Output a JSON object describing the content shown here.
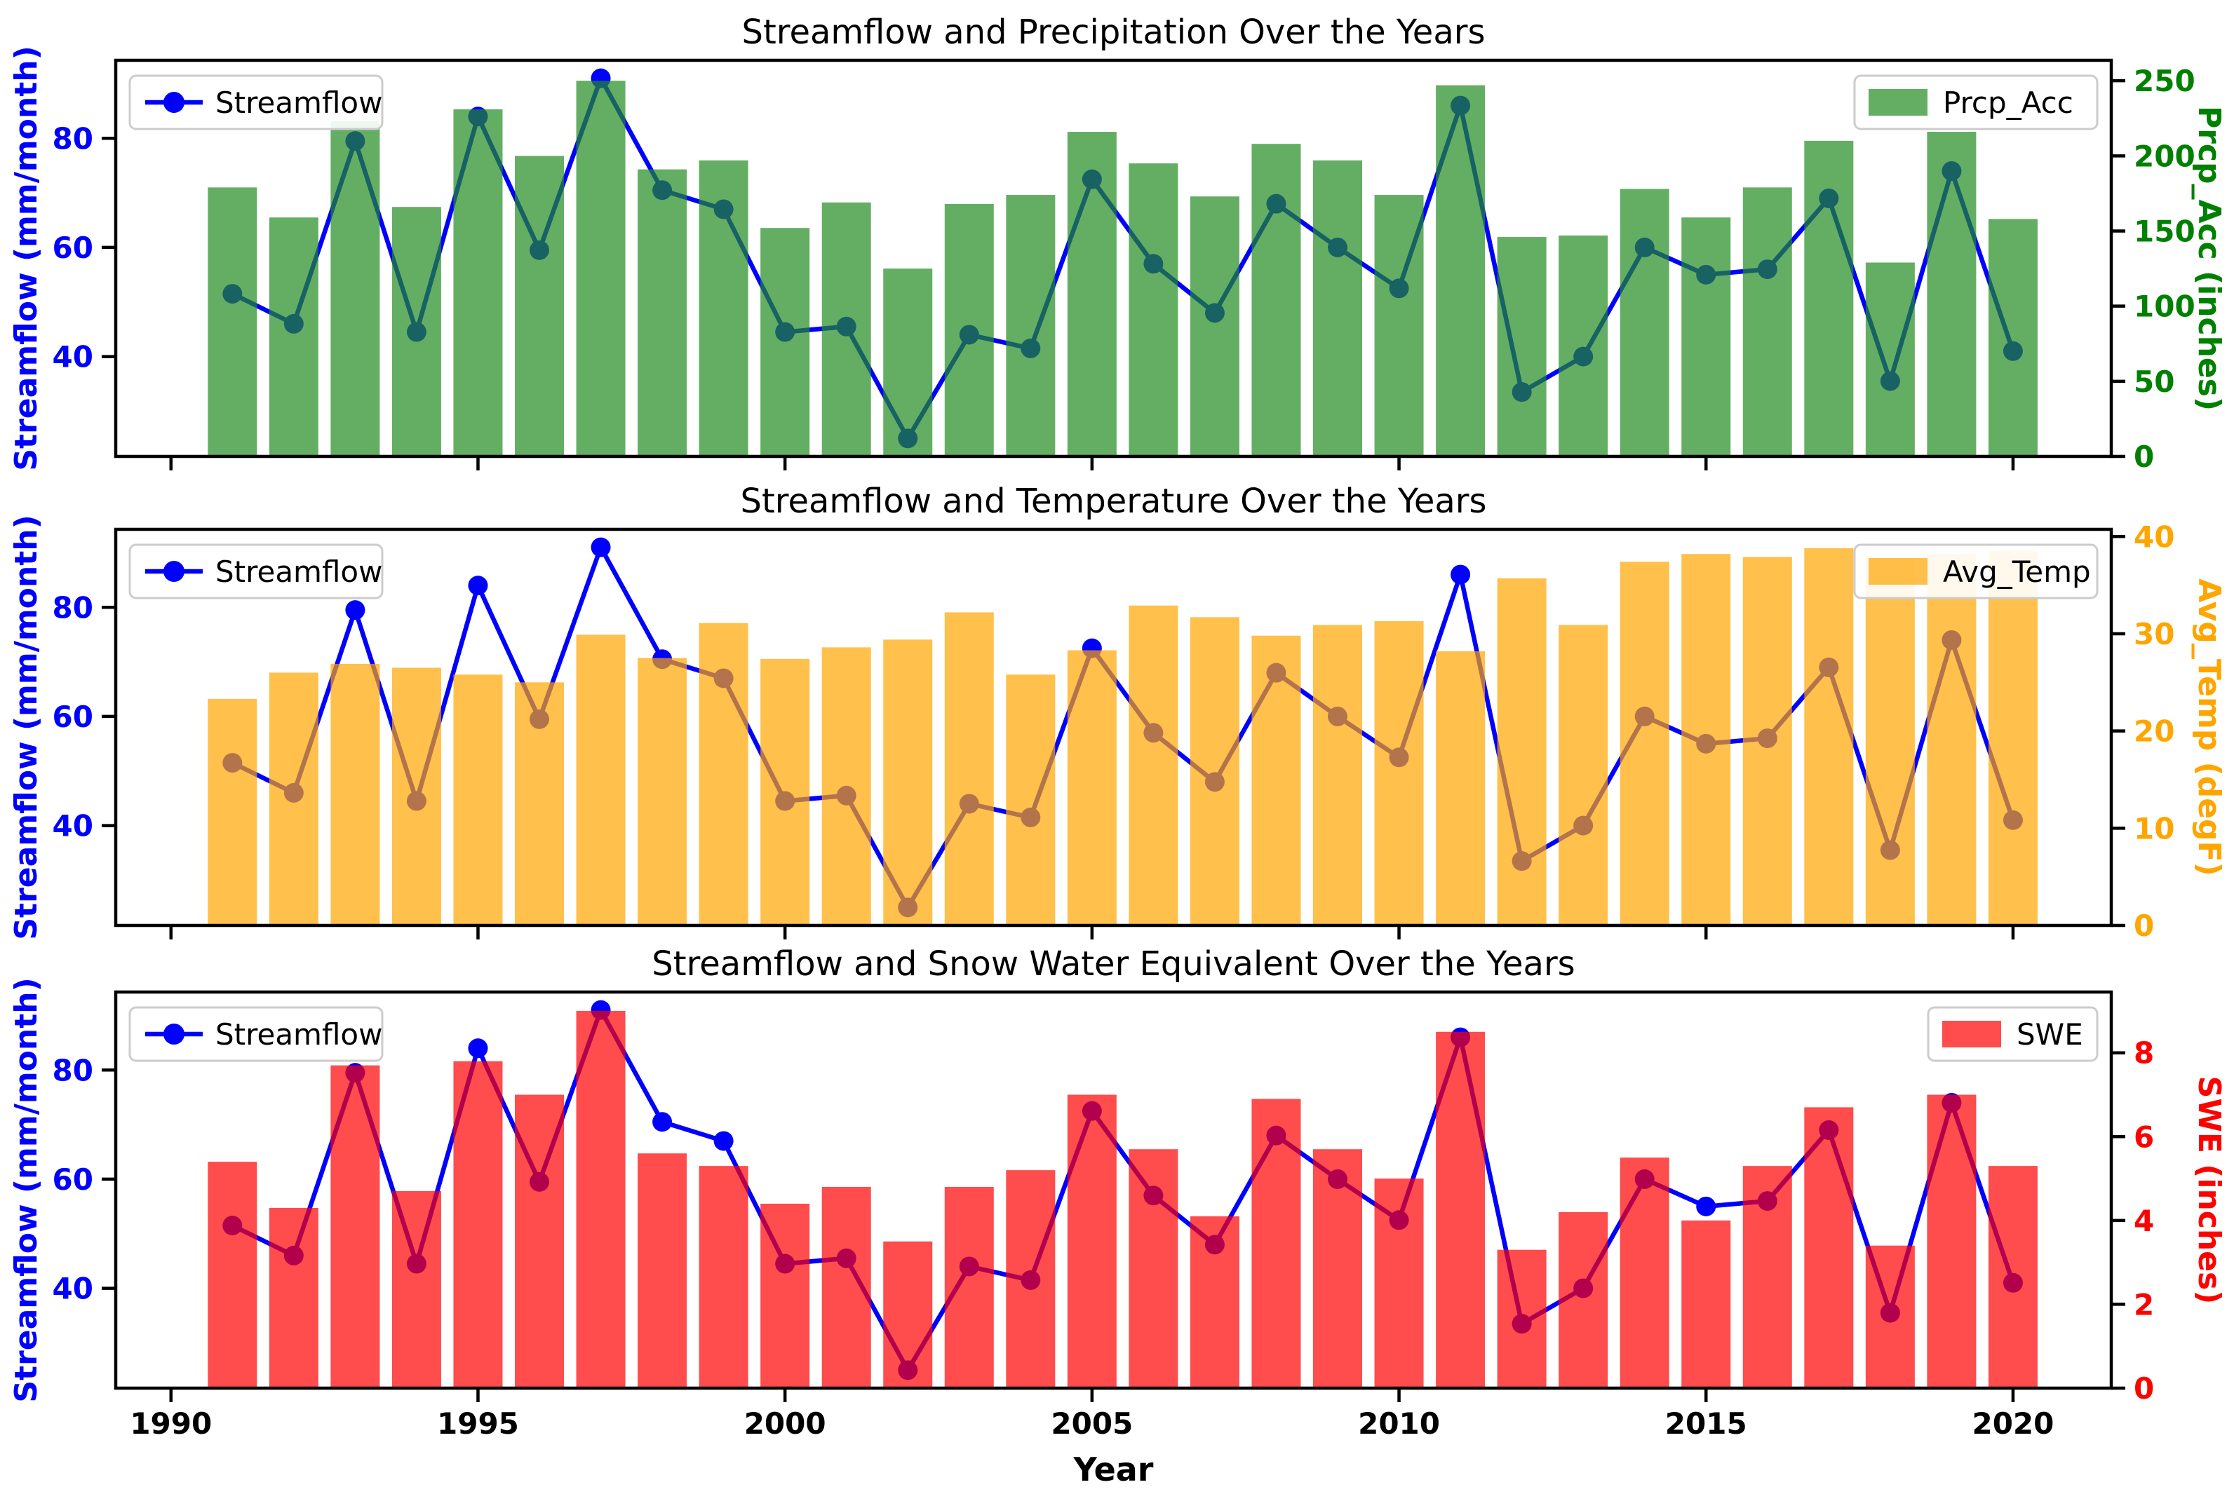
{
  "xlabel": "Year",
  "chart_data": [
    {
      "type": "bar+line",
      "title": "Streamflow and Precipitation Over the Years",
      "x": [
        1991,
        1992,
        1993,
        1994,
        1995,
        1996,
        1997,
        1998,
        1999,
        2000,
        2001,
        2002,
        2003,
        2004,
        2005,
        2006,
        2007,
        2008,
        2009,
        2010,
        2011,
        2012,
        2013,
        2014,
        2015,
        2016,
        2017,
        2018,
        2019,
        2020
      ],
      "series": [
        {
          "name": "Streamflow",
          "kind": "line",
          "axis": "left",
          "color": "#0000ff",
          "values": [
            51.5,
            46,
            79.5,
            44.5,
            84,
            59.5,
            91,
            70.5,
            67,
            44.5,
            45.5,
            25,
            44,
            41.5,
            72.5,
            57,
            48,
            68,
            60,
            52.5,
            86,
            33.5,
            40,
            60,
            55,
            56,
            69,
            35.5,
            74,
            41
          ]
        },
        {
          "name": "Prcp_Acc",
          "kind": "bar",
          "axis": "right",
          "color": "#228b22",
          "bar_alpha": 0.7,
          "values": [
            179,
            159,
            223,
            166,
            231,
            200,
            250,
            191,
            197,
            152,
            169,
            125,
            168,
            174,
            216,
            195,
            173,
            208,
            197,
            174,
            247,
            146,
            147,
            178,
            159,
            179,
            210,
            129,
            216,
            158
          ]
        }
      ],
      "left_axis": {
        "label": "Streamflow (mm/month)",
        "color": "#0000ff",
        "ticks": [
          40,
          60,
          80
        ],
        "lim": [
          21.7,
          94.3
        ]
      },
      "right_axis": {
        "label": "Prcp_Acc (inches)",
        "color": "#008000",
        "ticks": [
          0,
          50,
          100,
          150,
          200,
          250
        ],
        "lim": [
          0,
          263.6
        ]
      },
      "x_axis": {
        "ticks": [
          1990,
          1995,
          2000,
          2005,
          2010,
          2015,
          2020
        ],
        "lim": [
          1989.1,
          2021.6
        ],
        "show_labels": false
      },
      "legend_line": "Streamflow",
      "legend_bar": "Prcp_Acc"
    },
    {
      "type": "bar+line",
      "title": "Streamflow and Temperature Over the Years",
      "x": [
        1991,
        1992,
        1993,
        1994,
        1995,
        1996,
        1997,
        1998,
        1999,
        2000,
        2001,
        2002,
        2003,
        2004,
        2005,
        2006,
        2007,
        2008,
        2009,
        2010,
        2011,
        2012,
        2013,
        2014,
        2015,
        2016,
        2017,
        2018,
        2019,
        2020
      ],
      "series": [
        {
          "name": "Streamflow",
          "kind": "line",
          "axis": "left",
          "color": "#0000ff",
          "values": [
            51.5,
            46,
            79.5,
            44.5,
            84,
            59.5,
            91,
            70.5,
            67,
            44.5,
            45.5,
            25,
            44,
            41.5,
            72.5,
            57,
            48,
            68,
            60,
            52.5,
            86,
            33.5,
            40,
            60,
            55,
            56,
            69,
            35.5,
            74,
            41
          ]
        },
        {
          "name": "Avg_Temp",
          "kind": "bar",
          "axis": "right",
          "color": "#ffa500",
          "bar_alpha": 0.7,
          "values": [
            23.3,
            26,
            26.9,
            26.5,
            25.8,
            25,
            29.9,
            27.5,
            31.1,
            27.4,
            28.6,
            29.4,
            32.2,
            25.8,
            28.3,
            32.9,
            31.7,
            29.8,
            30.9,
            31.3,
            28.2,
            35.7,
            30.9,
            37.4,
            38.2,
            37.9,
            38.8,
            37.9,
            38.2,
            38.5
          ]
        }
      ],
      "left_axis": {
        "label": "Streamflow (mm/month)",
        "color": "#0000ff",
        "ticks": [
          40,
          60,
          80
        ],
        "lim": [
          21.7,
          94.3
        ]
      },
      "right_axis": {
        "label": "Avg_Temp (degF)",
        "color": "#ffa500",
        "ticks": [
          0,
          10,
          20,
          30,
          40
        ],
        "lim": [
          0,
          40.74
        ]
      },
      "x_axis": {
        "ticks": [
          1990,
          1995,
          2000,
          2005,
          2010,
          2015,
          2020
        ],
        "lim": [
          1989.1,
          2021.6
        ],
        "show_labels": false
      },
      "legend_line": "Streamflow",
      "legend_bar": "Avg_Temp"
    },
    {
      "type": "bar+line",
      "title": "Streamflow and Snow Water Equivalent Over the Years",
      "x": [
        1991,
        1992,
        1993,
        1994,
        1995,
        1996,
        1997,
        1998,
        1999,
        2000,
        2001,
        2002,
        2003,
        2004,
        2005,
        2006,
        2007,
        2008,
        2009,
        2010,
        2011,
        2012,
        2013,
        2014,
        2015,
        2016,
        2017,
        2018,
        2019,
        2020
      ],
      "series": [
        {
          "name": "Streamflow",
          "kind": "line",
          "axis": "left",
          "color": "#0000ff",
          "values": [
            51.5,
            46,
            79.5,
            44.5,
            84,
            59.5,
            91,
            70.5,
            67,
            44.5,
            45.5,
            25,
            44,
            41.5,
            72.5,
            57,
            48,
            68,
            60,
            52.5,
            86,
            33.5,
            40,
            60,
            55,
            56,
            69,
            35.5,
            74,
            41
          ]
        },
        {
          "name": "SWE",
          "kind": "bar",
          "axis": "right",
          "color": "#ff0000",
          "bar_alpha": 0.7,
          "values": [
            5.4,
            4.3,
            7.7,
            4.7,
            7.8,
            7,
            9,
            5.6,
            5.3,
            4.4,
            4.8,
            3.5,
            4.8,
            5.2,
            7,
            5.7,
            4.1,
            6.9,
            5.7,
            5,
            8.5,
            3.3,
            4.2,
            5.5,
            4,
            5.3,
            6.7,
            3.4,
            7,
            5.3
          ]
        }
      ],
      "left_axis": {
        "label": "Streamflow (mm/month)",
        "color": "#0000ff",
        "ticks": [
          40,
          60,
          80
        ],
        "lim": [
          21.7,
          94.3
        ]
      },
      "right_axis": {
        "label": "SWE (inches)",
        "color": "#ff0000",
        "ticks": [
          0,
          2,
          4,
          6,
          8
        ],
        "lim": [
          0,
          9.45
        ]
      },
      "x_axis": {
        "ticks": [
          1990,
          1995,
          2000,
          2005,
          2010,
          2015,
          2020
        ],
        "lim": [
          1989.1,
          2021.6
        ],
        "show_labels": true
      },
      "legend_line": "Streamflow",
      "legend_bar": "SWE"
    }
  ]
}
